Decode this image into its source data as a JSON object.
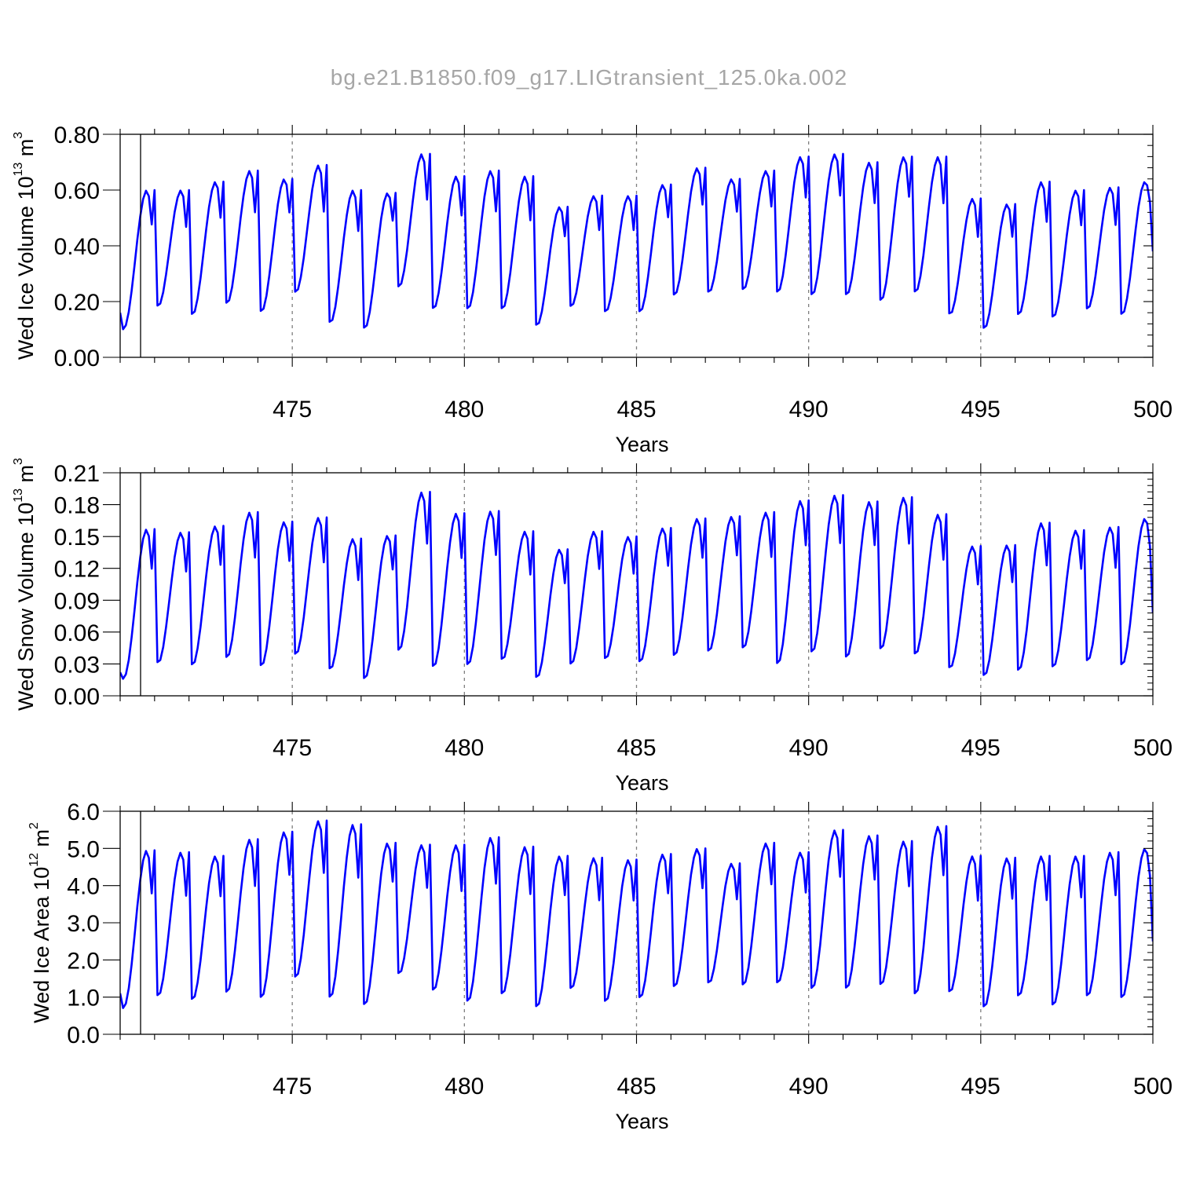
{
  "figure": {
    "title": "bg.e21.B1850.f09_g17.LIGtransient_125.0ka.002",
    "line_color": "#0000ff",
    "grid_color": "#7f7f7f"
  },
  "chart_data": [
    {
      "type": "line",
      "ylabel": {
        "pre": "Wed Ice Volume 10",
        "exp": "13",
        "unit": " m",
        "unit_exp": "3"
      },
      "xlabel": "Years",
      "xlim": [
        470.0,
        500.0
      ],
      "ylim": [
        0,
        0.8
      ],
      "x_ticks": [
        "475",
        "480",
        "485",
        "490",
        "495",
        "500"
      ],
      "x_tick_values": [
        475,
        480,
        485,
        490,
        495,
        500
      ],
      "y_ticks": [
        "0.00",
        "0.20",
        "0.40",
        "0.60",
        "0.80"
      ],
      "y_tick_values": [
        0,
        0.2,
        0.4,
        0.6,
        0.8
      ],
      "grid": "vertical dashed at major x ticks",
      "series": [
        {
          "mins": [
            0.1,
            0.18,
            0.15,
            0.19,
            0.16,
            0.23,
            0.12,
            0.1,
            0.25,
            0.17,
            0.17,
            0.17,
            0.11,
            0.18,
            0.16,
            0.16,
            0.22,
            0.23,
            0.24,
            0.23,
            0.22,
            0.22,
            0.2,
            0.23,
            0.15,
            0.1,
            0.15,
            0.14,
            0.17,
            0.15
          ],
          "peaks": [
            0.6,
            0.6,
            0.63,
            0.67,
            0.64,
            0.69,
            0.6,
            0.59,
            0.73,
            0.65,
            0.67,
            0.65,
            0.54,
            0.58,
            0.58,
            0.62,
            0.68,
            0.64,
            0.67,
            0.72,
            0.73,
            0.7,
            0.72,
            0.72,
            0.57,
            0.55,
            0.63,
            0.6,
            0.61,
            0.63
          ],
          "start": 0.16,
          "end": 0.38
        }
      ]
    },
    {
      "type": "line",
      "ylabel": {
        "pre": "Wed Snow Volume 10",
        "exp": "13",
        "unit": " m",
        "unit_exp": "3"
      },
      "xlabel": "Years",
      "xlim": [
        470.0,
        500.0
      ],
      "ylim": [
        0,
        0.21
      ],
      "x_ticks": [
        "475",
        "480",
        "485",
        "490",
        "495",
        "500"
      ],
      "x_tick_values": [
        475,
        480,
        485,
        490,
        495,
        500
      ],
      "y_ticks": [
        "0.00",
        "0.03",
        "0.06",
        "0.09",
        "0.12",
        "0.15",
        "0.18",
        "0.21"
      ],
      "y_tick_values": [
        0,
        0.03,
        0.06,
        0.09,
        0.12,
        0.15,
        0.18,
        0.21
      ],
      "grid": "vertical dashed at major x ticks",
      "series": [
        {
          "mins": [
            0.016,
            0.03,
            0.028,
            0.035,
            0.027,
            0.038,
            0.024,
            0.015,
            0.042,
            0.026,
            0.028,
            0.033,
            0.016,
            0.029,
            0.034,
            0.031,
            0.037,
            0.041,
            0.044,
            0.029,
            0.04,
            0.035,
            0.043,
            0.038,
            0.025,
            0.018,
            0.023,
            0.026,
            0.032,
            0.028
          ],
          "peaks": [
            0.157,
            0.154,
            0.16,
            0.173,
            0.164,
            0.168,
            0.148,
            0.151,
            0.192,
            0.172,
            0.174,
            0.155,
            0.138,
            0.155,
            0.15,
            0.158,
            0.167,
            0.169,
            0.173,
            0.184,
            0.189,
            0.183,
            0.187,
            0.171,
            0.141,
            0.142,
            0.163,
            0.156,
            0.159,
            0.167
          ],
          "start": 0.022,
          "end": 0.078
        }
      ]
    },
    {
      "type": "line",
      "ylabel": {
        "pre": "Wed Ice Area 10",
        "exp": "12",
        "unit": " m",
        "unit_exp": "2"
      },
      "xlabel": "Years",
      "xlim": [
        470.0,
        500.0
      ],
      "ylim": [
        0,
        6.0
      ],
      "x_ticks": [
        "475",
        "480",
        "485",
        "490",
        "495",
        "500"
      ],
      "x_tick_values": [
        475,
        480,
        485,
        490,
        495,
        500
      ],
      "y_ticks": [
        "0.0",
        "1.0",
        "2.0",
        "3.0",
        "4.0",
        "5.0",
        "6.0"
      ],
      "y_tick_values": [
        0,
        1,
        2,
        3,
        4,
        5,
        6
      ],
      "grid": "vertical dashed at major x ticks",
      "series": [
        {
          "mins": [
            0.7,
            1.0,
            0.9,
            1.1,
            0.95,
            1.5,
            0.95,
            0.75,
            1.6,
            1.15,
            0.85,
            1.05,
            0.7,
            1.2,
            0.85,
            0.95,
            1.25,
            1.35,
            1.3,
            1.35,
            1.2,
            1.2,
            1.3,
            1.05,
            1.1,
            0.7,
            1.0,
            0.75,
            1.0,
            0.95
          ],
          "peaks": [
            4.95,
            4.9,
            4.8,
            5.25,
            5.45,
            5.75,
            5.65,
            5.15,
            5.1,
            5.1,
            5.3,
            5.05,
            4.8,
            4.75,
            4.7,
            4.85,
            5.0,
            4.6,
            5.15,
            4.9,
            5.5,
            5.35,
            5.2,
            5.6,
            4.8,
            4.75,
            4.8,
            4.8,
            4.9,
            5.0
          ],
          "start": 1.1,
          "end": 2.5
        }
      ]
    }
  ]
}
